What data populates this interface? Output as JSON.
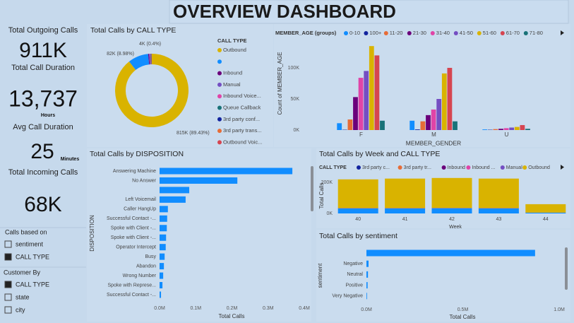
{
  "header": {
    "title": "OVERVIEW DASHBOARD"
  },
  "kpis": [
    {
      "label": "Total Outgoing Calls",
      "value": "911K"
    },
    {
      "label": "Total Call Duration",
      "value": "13,737",
      "unit": "Hours"
    },
    {
      "label": "Avg Call Duration",
      "value": "25",
      "unit": "Minutes"
    },
    {
      "label": "Total Incoming Calls",
      "value": "68K"
    }
  ],
  "slicers": [
    {
      "title": "Calls based on",
      "options": [
        {
          "label": "sentiment",
          "checked": false
        },
        {
          "label": "CALL TYPE",
          "checked": true
        }
      ]
    },
    {
      "title": "Customer By",
      "options": [
        {
          "label": "CALL TYPE",
          "checked": true
        },
        {
          "label": "state",
          "checked": false
        },
        {
          "label": "city",
          "checked": false
        }
      ]
    }
  ],
  "chart_data": [
    {
      "type": "donut",
      "title": "Total Calls by CALL TYPE",
      "legend_title": "CALL TYPE",
      "categories": [
        "Outbound",
        null,
        "Inbound",
        "Manual",
        "Inbound Voice...",
        "Queue Callback",
        "3rd party conf...",
        "3rd party trans...",
        "Outbound Voic..."
      ],
      "values": [
        815300,
        81870,
        3650,
        3200,
        2600,
        1900,
        1400,
        1000,
        780
      ],
      "value_labels": [
        "815K (89.43%)",
        "82K (8.98%)",
        "4K (0.4%)",
        null,
        null,
        null,
        null,
        null,
        null
      ],
      "colors": [
        "#D9B300",
        "#118DFF",
        "#6B007B",
        "#744EC2",
        "#E044A7",
        "#197278",
        "#12239E",
        "#E66C37",
        "#D64550"
      ]
    },
    {
      "type": "bar",
      "legend_title": "MEMBER_AGE (groups)",
      "x_label": "MEMBER_GENDER",
      "y_label": "Count of MEMBER_AGE",
      "categories": [
        "F",
        "M",
        "U"
      ],
      "series": [
        {
          "name": "0-10",
          "color": "#118DFF",
          "values": [
            11000,
            15000,
            1000
          ]
        },
        {
          "name": "100+",
          "color": "#12239E",
          "values": [
            500,
            1000,
            500
          ]
        },
        {
          "name": "11-20",
          "color": "#E66C37",
          "values": [
            17000,
            14000,
            1500
          ]
        },
        {
          "name": "21-30",
          "color": "#6B007B",
          "values": [
            53000,
            24000,
            2000
          ]
        },
        {
          "name": "31-40",
          "color": "#E044A7",
          "values": [
            84000,
            33000,
            3000
          ]
        },
        {
          "name": "41-50",
          "color": "#744EC2",
          "values": [
            95000,
            50000,
            4000
          ]
        },
        {
          "name": "51-60",
          "color": "#D9B300",
          "values": [
            135000,
            91000,
            5000
          ]
        },
        {
          "name": "61-70",
          "color": "#D64550",
          "values": [
            120000,
            100000,
            8000
          ]
        },
        {
          "name": "71-80",
          "color": "#197278",
          "values": [
            15000,
            14000,
            2000
          ]
        }
      ],
      "ylim": [
        0,
        150000
      ],
      "yticks": [
        {
          "value": 0,
          "label": "0K"
        },
        {
          "value": 50000,
          "label": "50K"
        },
        {
          "value": 100000,
          "label": "100K"
        }
      ]
    },
    {
      "type": "barh",
      "title": "Total Calls by DISPOSITION",
      "x_label": "Total Calls",
      "y_label": "DISPOSITION",
      "categories": [
        "Answering Machine",
        "No Answer",
        null,
        "Left Voicemail",
        "Caller HangUp",
        "Successful Contact -...",
        "Spoke with Client -...",
        "Spoke with Client -...",
        "Operator Intercept",
        "Busy",
        "Abandon",
        "Wrong Number",
        "Spoke with Represe...",
        "Successful Contact -..."
      ],
      "values": [
        367000,
        215000,
        82000,
        72000,
        23000,
        21000,
        20000,
        18000,
        17000,
        14000,
        12000,
        10000,
        8000,
        4000
      ],
      "color": "#118DFF",
      "xlim": [
        0,
        400000
      ],
      "xticks": [
        {
          "value": 0,
          "label": "0.0M"
        },
        {
          "value": 100000,
          "label": "0.1M"
        },
        {
          "value": 200000,
          "label": "0.2M"
        },
        {
          "value": 300000,
          "label": "0.3M"
        },
        {
          "value": 400000,
          "label": "0.4M"
        }
      ]
    },
    {
      "type": "stacked",
      "title": "Total Calls by Week and CALL TYPE",
      "legend_title": "CALL TYPE",
      "x_label": "Week",
      "y_label": "Total Calls",
      "categories": [
        "40",
        "41",
        "42",
        "43",
        "44"
      ],
      "series": [
        {
          "name": null,
          "color": "#118DFF",
          "values": [
            32000,
            32000,
            33000,
            32000,
            5000
          ]
        },
        {
          "name": "3rd party c...",
          "color": "#12239E",
          "values": [
            200,
            200,
            200,
            200,
            50
          ]
        },
        {
          "name": "3rd party tr...",
          "color": "#E66C37",
          "values": [
            200,
            200,
            200,
            200,
            50
          ]
        },
        {
          "name": "Inbound",
          "color": "#6B007B",
          "values": [
            700,
            700,
            700,
            700,
            200
          ]
        },
        {
          "name": "Inbound ...",
          "color": "#E044A7",
          "values": [
            500,
            500,
            500,
            500,
            100
          ]
        },
        {
          "name": "Manual",
          "color": "#744EC2",
          "values": [
            600,
            600,
            600,
            600,
            150
          ]
        },
        {
          "name": "Outbound",
          "color": "#D9B300",
          "values": [
            185000,
            190000,
            193000,
            190000,
            54000
          ]
        }
      ],
      "ylim": [
        0,
        230000
      ],
      "yticks": [
        {
          "value": 0,
          "label": "0K"
        },
        {
          "value": 200000,
          "label": "200K"
        }
      ]
    },
    {
      "type": "barh",
      "title": "Total Calls by sentiment",
      "x_label": "Total Calls",
      "y_label": "sentiment",
      "categories": [
        null,
        "Negative",
        "Neutral",
        "Positive",
        "Very Negative"
      ],
      "values": [
        875000,
        11000,
        8000,
        6000,
        3000
      ],
      "color": "#118DFF",
      "xlim": [
        0,
        1000000
      ],
      "xticks": [
        {
          "value": 0,
          "label": "0.0M"
        },
        {
          "value": 500000,
          "label": "0.5M"
        },
        {
          "value": 1000000,
          "label": "1.0M"
        }
      ]
    }
  ]
}
